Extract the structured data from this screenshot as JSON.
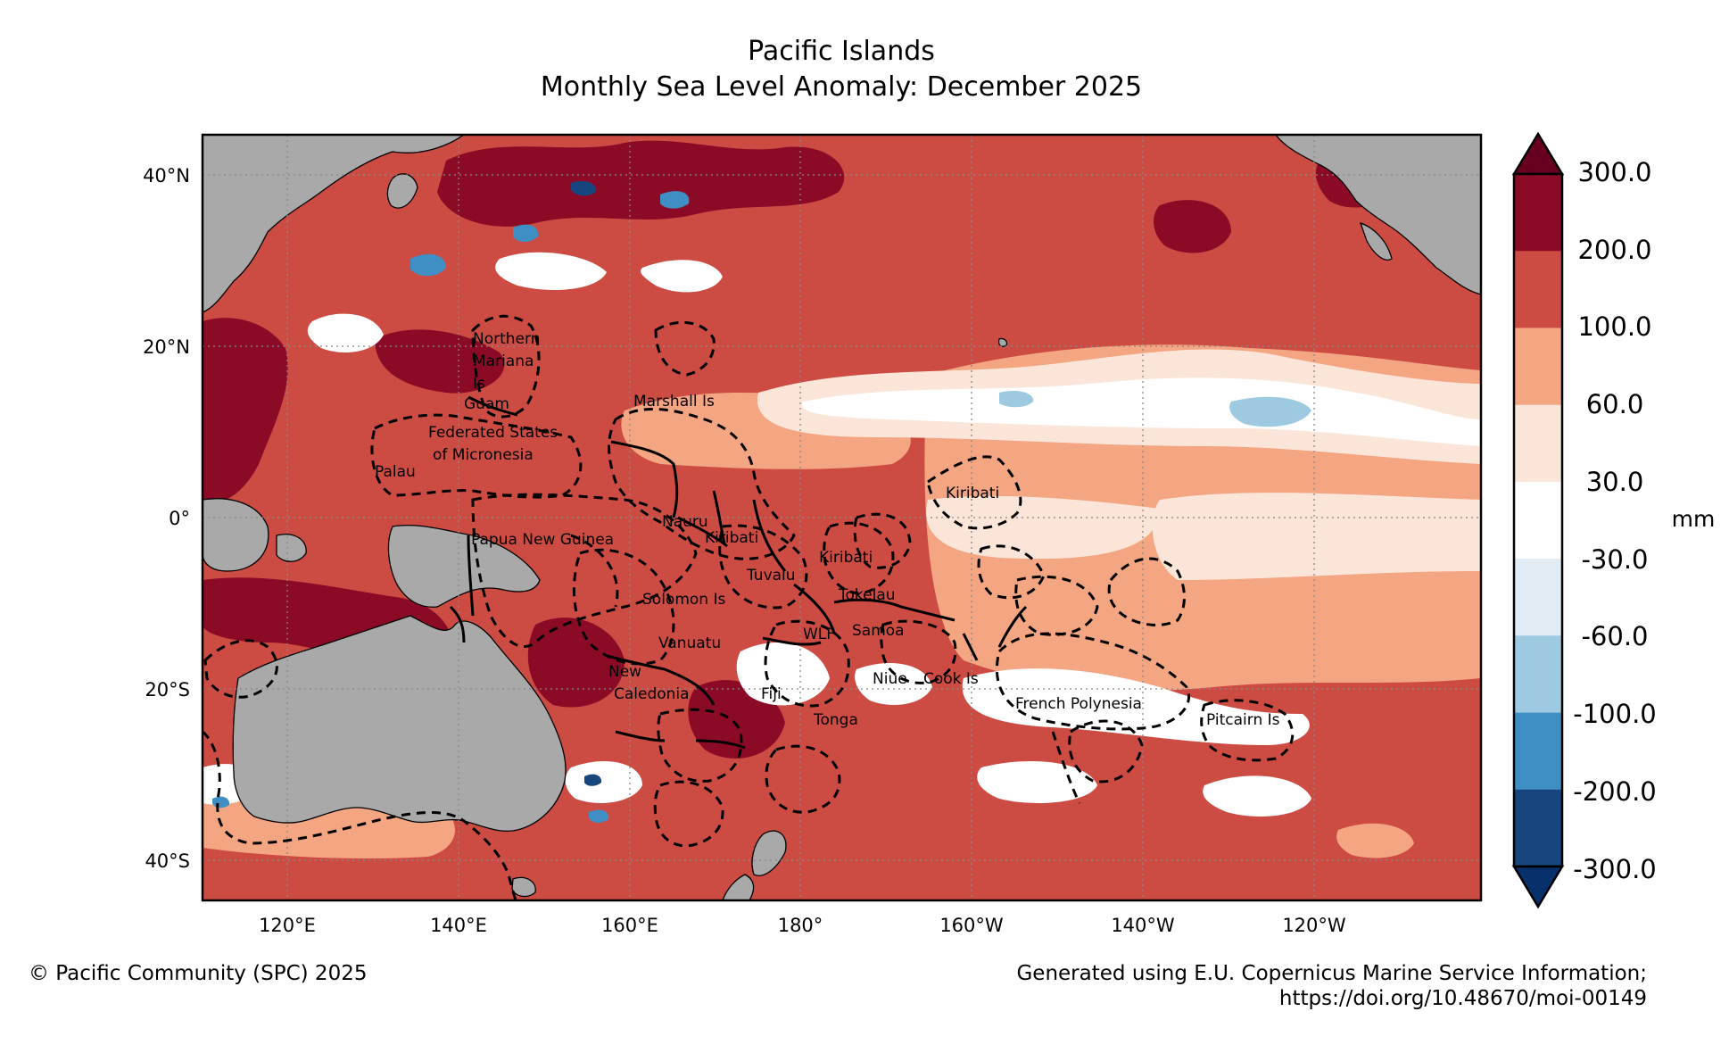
{
  "title": "Pacific Islands",
  "subtitle": "Monthly Sea Level Anomaly: December 2025",
  "map": {
    "lat_labels": [
      "40°N",
      "20°N",
      "0°",
      "20°S",
      "40°S"
    ],
    "lon_labels": [
      "120°E",
      "140°E",
      "160°E",
      "180°",
      "160°W",
      "140°W",
      "120°W"
    ],
    "regions": [
      "Northern",
      "Mariana",
      "Is",
      "Guam",
      "Federated States",
      "of Micronesia",
      "Palau",
      "Marshall Is",
      "Kiribati",
      "Nauru",
      "Papua New Guinea",
      "Kiribati",
      "Kiribati",
      "Tuvalu",
      "Tokelau",
      "Solomon Is",
      "Samoa",
      "Vanuatu",
      "WLF",
      "New",
      "Caledonia",
      "Fiji",
      "Niue",
      "Cook Is",
      "French Polynesia",
      "Tonga",
      "Pitcairn Is"
    ]
  },
  "colorbar": {
    "unit": "mm",
    "ticks": [
      "300.0",
      "200.0",
      "100.0",
      "60.0",
      "30.0",
      "-30.0",
      "-60.0",
      "-100.0",
      "-200.0",
      "-300.0"
    ],
    "colors": [
      "#67001f",
      "#8b0b26",
      "#cc4c43",
      "#f4a582",
      "#fbe5d9",
      "#ffffff",
      "#e2ecf4",
      "#9ecae1",
      "#3f8fc4",
      "#17467f",
      "#08306b"
    ]
  },
  "colors": {
    "land": "#a9a9a9",
    "ocean_base": "#cc4c43"
  },
  "footer": {
    "credit": "© Pacific Community (SPC) 2025",
    "source_line1": "Generated using E.U. Copernicus Marine Service Information;",
    "source_line2": "https://doi.org/10.48670/moi-00149"
  }
}
